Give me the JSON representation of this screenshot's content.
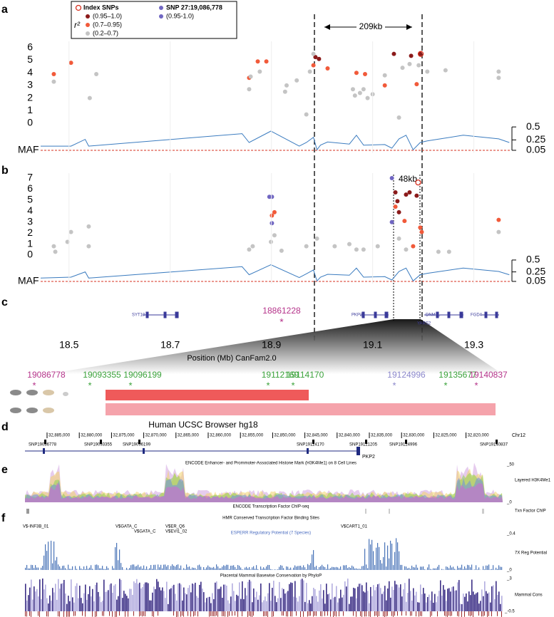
{
  "panel_labels": [
    "a",
    "b",
    "c",
    "d",
    "e",
    "f"
  ],
  "legend": {
    "r2_label": "r²"
  },
  "chart_data": [
    {
      "type": "scatter",
      "annotation": "209kb",
      "xlim": [
        18.444,
        19.371
      ],
      "ylim": [
        0,
        6.2
      ],
      "yticks": [
        0,
        1,
        2,
        3,
        4,
        5,
        6
      ],
      "series": [
        {
          "name": "(0.95–1.0)",
          "color": "#8b1a1a",
          "x": [
            18.987,
            18.994,
            19.142,
            19.176,
            19.194
          ],
          "values": [
            5.25,
            5.1,
            5.5,
            5.35,
            5.5
          ]
        },
        {
          "name": "(0.7–0.95)",
          "color": "#f15a3a",
          "x": [
            18.47,
            18.504,
            18.856,
            18.873,
            18.89,
            18.983,
            19.011,
            19.068,
            19.085,
            19.124,
            19.187
          ],
          "values": [
            3.9,
            4.8,
            3.6,
            4.9,
            4.9,
            4.6,
            4.35,
            4.0,
            3.9,
            3.0,
            3.1
          ]
        },
        {
          "name": "(0.2–0.7)",
          "color": "#c4c4c4",
          "x": [
            18.47,
            18.541,
            18.554,
            18.856,
            18.859,
            18.877,
            18.927,
            18.976,
            18.969,
            19.061,
            19.075,
            19.082,
            19.124,
            19.159,
            19.173,
            19.191,
            19.152,
            19.208,
            19.244,
            19.349,
            19.349,
            18.983,
            19.065,
            19.09,
            19.1,
            18.93,
            18.95
          ],
          "values": [
            3.3,
            2.0,
            3.9,
            2.7,
            3.7,
            4.1,
            2.5,
            4.1,
            0.7,
            2.7,
            2.4,
            2.7,
            3.8,
            4.4,
            4.7,
            4.6,
            0.45,
            4.1,
            4.2,
            4.1,
            3.6,
            5.5,
            2.2,
            2.0,
            2.3,
            3.0,
            3.4
          ]
        },
        {
          "name": "Index SNPs",
          "color": "#d7301f",
          "marker": "hollow",
          "x": [
            19.195
          ],
          "values": [
            5.5
          ]
        }
      ],
      "maf": {
        "label": "MAF",
        "color": "#3a7bbf",
        "ylim": [
          0,
          0.55
        ],
        "yticks": [
          0.5,
          0.25,
          0.05
        ],
        "threshold": 0.05,
        "threshold_color": "#d7301f",
        "x": [
          18.444,
          18.504,
          18.532,
          18.539,
          18.842,
          18.856,
          18.899,
          18.955,
          18.969,
          18.983,
          18.99,
          18.997,
          19.011,
          19.054,
          19.068,
          19.082,
          19.124,
          19.138,
          19.152,
          19.166,
          19.18,
          19.194,
          19.208,
          19.279,
          19.349,
          19.37
        ],
        "values": [
          0.13,
          0.13,
          0.26,
          0.13,
          0.37,
          0.2,
          0.42,
          0.13,
          0.2,
          0.3,
          0.06,
          0.15,
          0.21,
          0.17,
          0.34,
          0.15,
          0.16,
          0.09,
          0.27,
          0.34,
          0.06,
          0.2,
          0.23,
          0.34,
          0.27,
          0.2
        ]
      }
    },
    {
      "type": "scatter",
      "annotation": "48kb",
      "legend_title": "SNP 27:19,086,778",
      "xlim": [
        18.444,
        19.371
      ],
      "ylim": [
        0,
        7.2
      ],
      "yticks": [
        0,
        1,
        2,
        3,
        4,
        5,
        6,
        7
      ],
      "series": [
        {
          "color": "#8b1a1a",
          "x": [
            19.145,
            19.149,
            19.152,
            19.166,
            19.173,
            19.187
          ],
          "values": [
            5.7,
            4.9,
            3.9,
            5.5,
            5.7,
            5.4
          ]
        },
        {
          "color": "#f15a3a",
          "x": [
            18.901,
            18.906,
            19.145,
            19.163,
            19.18,
            19.194,
            19.197,
            19.349
          ],
          "values": [
            3.6,
            3.9,
            4.4,
            3.1,
            0.8,
            2.5,
            2.1,
            3.2
          ]
        },
        {
          "color": "#c4c4c4",
          "x": [
            18.47,
            18.473,
            18.497,
            18.504,
            18.539,
            18.539,
            18.856,
            18.863,
            18.899,
            18.906,
            18.92,
            18.969,
            18.99,
            19.025,
            19.054,
            19.068,
            19.082,
            19.11,
            19.152,
            19.166,
            19.23,
            19.251,
            19.349
          ],
          "values": [
            0.8,
            0.3,
            1.2,
            2.1,
            2.6,
            0.8,
            0.5,
            0.8,
            1.2,
            1.8,
            0.4,
            0.8,
            1.5,
            0.8,
            1.0,
            0.5,
            0.5,
            0.8,
            1.5,
            0.5,
            0.3,
            0.3,
            2.1
          ]
        },
        {
          "name": "(0.95-1.0)",
          "color": "#7066c2",
          "x": [
            18.896,
            18.901,
            18.901,
            19.138,
            19.138
          ],
          "values": [
            5.3,
            5.3,
            2.9,
            7.0,
            3.0
          ]
        },
        {
          "color": "#d7301f",
          "marker": "hollow",
          "x": [
            19.19
          ],
          "values": [
            6.6
          ]
        }
      ],
      "maf": {
        "label": "MAF",
        "color": "#3a7bbf",
        "ylim": [
          0,
          0.55
        ],
        "yticks": [
          0.5,
          0.25,
          0.05
        ],
        "threshold": 0.05,
        "threshold_color": "#d7301f",
        "x": [
          18.444,
          18.504,
          18.532,
          18.539,
          18.842,
          18.856,
          18.899,
          18.955,
          18.969,
          18.983,
          18.99,
          18.997,
          19.011,
          19.054,
          19.068,
          19.082,
          19.124,
          19.138,
          19.152,
          19.166,
          19.18,
          19.194,
          19.208,
          19.279,
          19.349,
          19.37
        ],
        "values": [
          0.12,
          0.14,
          0.25,
          0.12,
          0.36,
          0.19,
          0.4,
          0.13,
          0.21,
          0.29,
          0.06,
          0.14,
          0.2,
          0.18,
          0.33,
          0.14,
          0.15,
          0.08,
          0.26,
          0.33,
          0.06,
          0.19,
          0.22,
          0.33,
          0.26,
          0.19
        ]
      }
    },
    {
      "type": "genes",
      "xlim": [
        18.444,
        19.371
      ],
      "xticks": [
        18.5,
        18.7,
        18.9,
        19.1,
        19.3
      ],
      "xlabel": "Position (Mb) CanFam2.0",
      "genes": [
        "SYT10",
        "PKP2",
        "DNM1L",
        "YARS2",
        "FGD4"
      ],
      "snp": {
        "label": "18861228",
        "color": "#b5338a"
      }
    }
  ],
  "zoom": {
    "snps": [
      {
        "label": "19086778",
        "color": "#b5338a"
      },
      {
        "label": "19093355",
        "color": "#3aa23a"
      },
      {
        "label": "19096199",
        "color": "#3aa23a"
      },
      {
        "label": "19112169",
        "color": "#3aa23a"
      },
      {
        "label": "19114170",
        "color": "#3aa23a"
      },
      {
        "label": "19124996",
        "color": "#8c88cc"
      },
      {
        "label": "19135677",
        "color": "#3aa23a"
      },
      {
        "label": "19140837",
        "color": "#b5338a"
      }
    ],
    "browser_title": "Human UCSC Browser hg18"
  },
  "browser": {
    "ruler": [
      "32,885,000",
      "32,880,000",
      "32,875,000",
      "32,870,000",
      "32,865,000",
      "32,860,000",
      "32,855,000",
      "32,850,000",
      "32,845,000",
      "32,840,000",
      "32,835,000",
      "32,830,000",
      "32,825,000",
      "32,820,000"
    ],
    "chrom": "Chr12",
    "snps": [
      "SNP19086778",
      "SNP19093355",
      "SNP19096199",
      "SNP19114170",
      "SNP19121205",
      "SNP19124996",
      "SNP19140837"
    ],
    "gene": "PKP2",
    "h3k4_title": "ENCODE Enhancer- and Prommoter-Associated Histone Mark (H3K4Me1) on 8 Cell Lines",
    "h3k4_track": "Layered H3K4Me1",
    "h3k4_max": "_50",
    "h3k4_min": "_0",
    "chip_title": "ENCODE Transcription Factor ChIP-seq",
    "chip_track": "Txn Factor ChIP",
    "tfbs_title": "HMR Conserved Transcription Factor Binding Sites",
    "tfbs": [
      "V$-INF3B_01",
      "V$GATA_C",
      "V$GATA_C",
      "V$ER_Q6",
      "V$EVI1_02",
      "V$CART1_01"
    ],
    "esperr_title": "ESPERR Regulatory Potential (7 Species)",
    "esperr_track": "7X Reg Potential",
    "esperr_max": "_0.4",
    "esperr_min": "_0",
    "phylop_title": "Placental Mammal Basewise Conservation by PhyloP",
    "phylop_track": "Mammal Cons",
    "phylop_max": "_3",
    "phylop_min": "_-0.5"
  }
}
